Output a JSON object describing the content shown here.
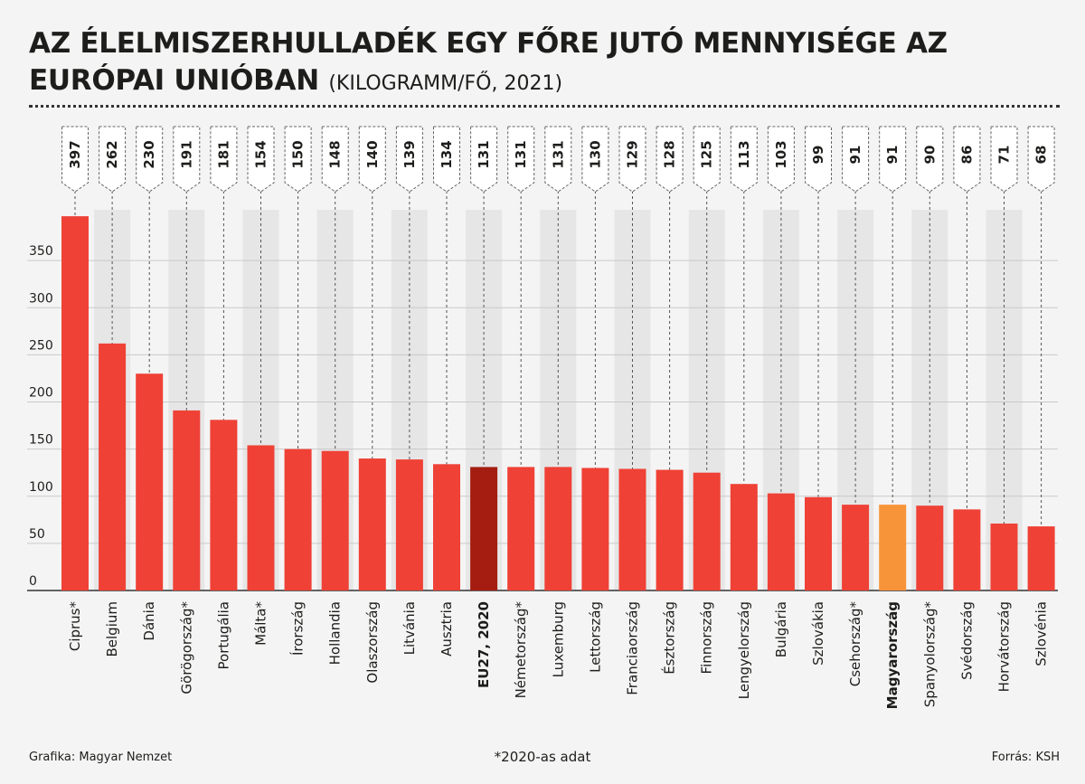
{
  "header": {
    "title_main": "AZ ÉLELMISZERHULLADÉK EGY FŐRE JUTÓ MENNYISÉGE AZ EURÓPAI UNIÓBAN",
    "title_unit": "(KILOGRAMM/FŐ, 2021)"
  },
  "footer": {
    "credit": "Grafika: Magyar Nemzet",
    "note": "*2020-as adat",
    "source": "Forrás: KSH"
  },
  "colors": {
    "bar": "#ef4136",
    "bar_eu": "#a41d10",
    "bar_highlight": "#f7943a",
    "stripe": "#e6e6e6",
    "grid": "#c9c9c9",
    "text": "#1d1d1b"
  },
  "chart_data": {
    "type": "bar",
    "title": "AZ ÉLELMISZERHULLADÉK EGY FŐRE JUTÓ MENNYISÉGE AZ EURÓPAI UNIÓBAN (KILOGRAMM/FŐ, 2021)",
    "categories": [
      "Ciprus*",
      "Belgium",
      "Dánia",
      "Görögország*",
      "Portugália",
      "Málta*",
      "Írország",
      "Hollandia",
      "Olaszország",
      "Litvánia",
      "Ausztria",
      "EU27, 2020",
      "Németország*",
      "Luxemburg",
      "Lettország",
      "Franciaország",
      "Észtország",
      "Finnország",
      "Lengyelország",
      "Bulgária",
      "Szlovákia",
      "Csehország*",
      "Magyarország",
      "Spanyolország*",
      "Svédország",
      "Horvátország",
      "Szlovénia"
    ],
    "values": [
      397,
      262,
      230,
      191,
      181,
      154,
      150,
      148,
      140,
      139,
      134,
      131,
      131,
      131,
      130,
      129,
      128,
      125,
      113,
      103,
      99,
      91,
      91,
      90,
      86,
      71,
      68
    ],
    "value_labels": [
      "397",
      "262",
      "230",
      "191",
      "181",
      "154",
      "150",
      "148",
      "140",
      "139",
      "134",
      "131",
      "131",
      "131",
      "130",
      "129",
      "128",
      "125",
      "113",
      "103",
      "99",
      "91",
      "91",
      "90",
      "86",
      "71",
      "68"
    ],
    "bold_categories": [
      "EU27, 2020",
      "Magyarország"
    ],
    "eu_category": "EU27, 2020",
    "highlight_category": "Magyarország",
    "y_ticks": [
      0,
      50,
      100,
      150,
      200,
      250,
      300,
      350
    ],
    "y_tick_labels": [
      "0",
      "50",
      "100",
      "150",
      "200",
      "250",
      "300",
      "350"
    ],
    "ylim": [
      0,
      400
    ],
    "grid": true,
    "legend": "none"
  }
}
